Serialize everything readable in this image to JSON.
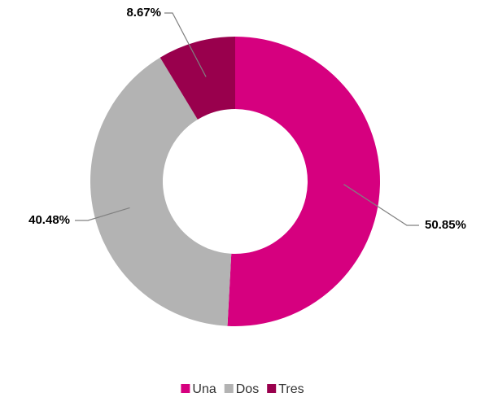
{
  "chart_data": {
    "type": "donut",
    "categories": [
      "Una",
      "Dos",
      "Tres"
    ],
    "values": [
      50.85,
      40.48,
      8.67
    ],
    "value_labels": [
      "50.85%",
      "40.48%",
      "8.67%"
    ],
    "colors": [
      "#d6007f",
      "#b3b3b3",
      "#99004d"
    ],
    "legend": "bottom"
  }
}
